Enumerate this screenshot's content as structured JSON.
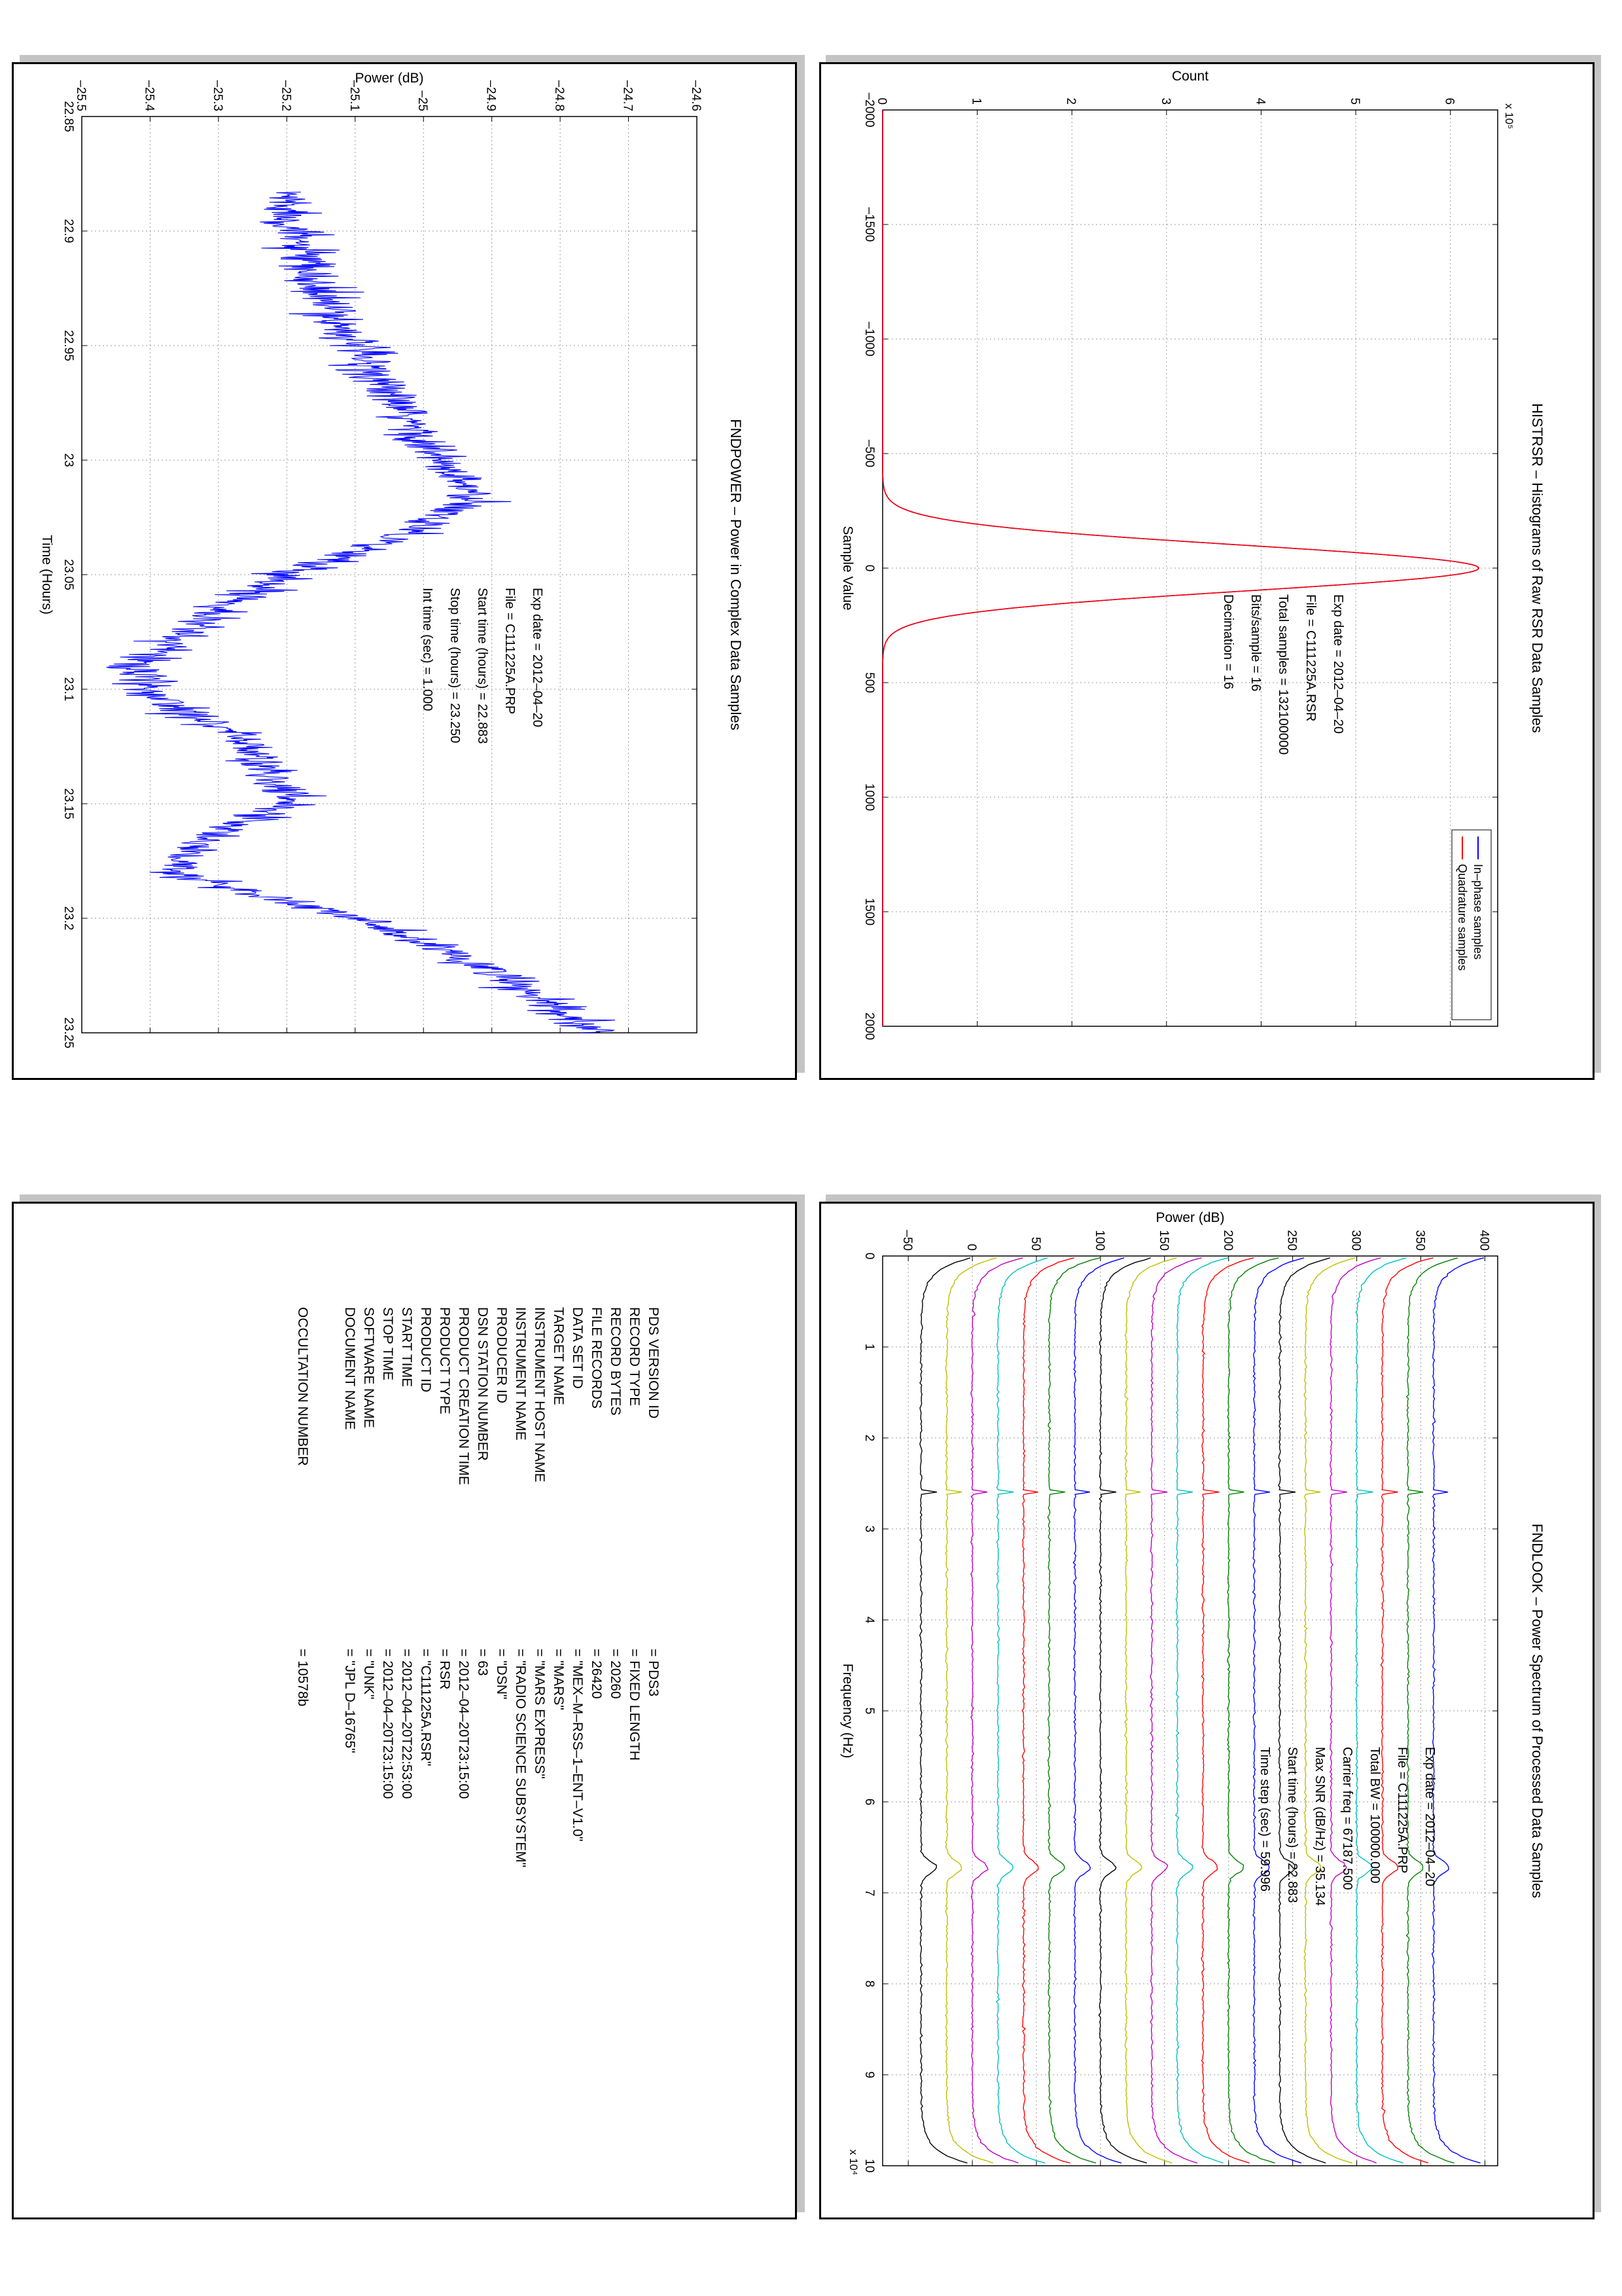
{
  "colors": {
    "inphase": "#0000ff",
    "quadrature": "#ff0000",
    "power_trace": "#0000ff",
    "spectrum_traces": [
      "#0000ff",
      "#008000",
      "#ff0000",
      "#00bfbf",
      "#bf00bf",
      "#bfbf00",
      "#000000",
      "#0000ff",
      "#008000",
      "#ff0000",
      "#00bfbf",
      "#bf00bf",
      "#bfbf00",
      "#000000",
      "#0000ff",
      "#008000",
      "#ff0000",
      "#00bfbf",
      "#bf00bf",
      "#bfbf00",
      "#000000"
    ]
  },
  "histogram": {
    "title": "HISTRSR – Histograms of Raw RSR Data Samples",
    "xlabel": "Sample Value",
    "ylabel": "Count",
    "exponent": "x 10⁵",
    "legend": [
      "In–phase samples",
      "Quadrature samples"
    ],
    "info": [
      "Exp date = 2012–04–20",
      "File = C111225A.RSR",
      "Total samples =  132100000",
      "Bits/sample   =       16",
      "Decimation    =       16"
    ]
  },
  "power": {
    "title": "FNDPOWER – Power in Complex Data Samples",
    "xlabel": "Time (Hours)",
    "ylabel": "Power (dB)",
    "info": [
      "Exp date = 2012–04–20",
      "File = C111225A.PRP",
      "Start time (hours) = 22.883",
      "Stop time (hours) =  23.250",
      "Int time (sec) =      1.000"
    ]
  },
  "spectrum": {
    "title": "FNDLOOK – Power Spectrum of Processed Data Samples",
    "xlabel": "Frequency (Hz)",
    "ylabel": "Power (dB)",
    "exponent": "x 10⁴",
    "info": [
      "Exp date = 2012–04–20",
      "File = C111225A.PRP",
      "Total BW =     100000.000",
      "Carrier freq =  67187.500",
      "Max SNR (dB/Hz) =    35.134",
      "Start time (hours) =   22.883",
      "Time step (sec) =     59.996"
    ]
  },
  "label": {
    "rows": [
      {
        "key": "PDS VERSION ID",
        "value": "= PDS3"
      },
      {
        "key": "RECORD TYPE",
        "value": "= FIXED LENGTH"
      },
      {
        "key": "RECORD BYTES",
        "value": "= 20260"
      },
      {
        "key": "FILE RECORDS",
        "value": "= 26420"
      },
      {
        "key": "DATA SET ID",
        "value": "= \"MEX–M–RSS–1–ENT–V1.0\""
      },
      {
        "key": "TARGET NAME",
        "value": "= \"MARS\""
      },
      {
        "key": "INSTRUMENT HOST NAME",
        "value": "= \"MARS EXPRESS\""
      },
      {
        "key": "INSTRUMENT NAME",
        "value": "= \"RADIO SCIENCE SUBSYSTEM\""
      },
      {
        "key": "PRODUCER ID",
        "value": "= \"DSN\""
      },
      {
        "key": "DSN STATION NUMBER",
        "value": "= 63"
      },
      {
        "key": "PRODUCT CREATION TIME",
        "value": "= 2012–04–20T23:15:00"
      },
      {
        "key": "PRODUCT TYPE",
        "value": "= RSR"
      },
      {
        "key": "PRODUCT ID",
        "value": "= \"C111225A.RSR\""
      },
      {
        "key": "START TIME",
        "value": "= 2012–04–20T22:53:00"
      },
      {
        "key": "STOP TIME",
        "value": "= 2012–04–20T23:15:00"
      },
      {
        "key": "SOFTWARE NAME",
        "value": "= \"UNK\""
      },
      {
        "key": "DOCUMENT NAME",
        "value": "= \"JPL D–16765\""
      }
    ],
    "occultation": {
      "key": "OCCULTATION NUMBER",
      "value": "= 10578b"
    }
  },
  "chart_data": [
    {
      "type": "line",
      "title": "HISTRSR – Histograms of Raw RSR Data Samples",
      "xlabel": "Sample Value",
      "ylabel": "Count",
      "xlim": [
        -2000,
        2000
      ],
      "ylim": [
        0,
        650000
      ],
      "xticks": [
        -2000,
        -1500,
        -1000,
        -500,
        0,
        500,
        1000,
        1500,
        2000
      ],
      "yticks": [
        0,
        100000,
        200000,
        300000,
        400000,
        500000,
        600000
      ],
      "ytick_labels": [
        "0",
        "1",
        "2",
        "3",
        "4",
        "5",
        "6"
      ],
      "grid": true,
      "legend_position": "top-right",
      "series": [
        {
          "name": "In–phase samples",
          "shape": "gaussian",
          "peak": 630000,
          "center": 0,
          "sigma": 100
        },
        {
          "name": "Quadrature samples",
          "shape": "gaussian",
          "peak": 630000,
          "center": 0,
          "sigma": 100
        }
      ]
    },
    {
      "type": "line",
      "title": "FNDPOWER – Power in Complex Data Samples",
      "xlabel": "Time (Hours)",
      "ylabel": "Power (dB)",
      "xlim": [
        22.85,
        23.25
      ],
      "ylim": [
        -25.5,
        -24.6
      ],
      "xticks": [
        22.85,
        22.9,
        22.95,
        23,
        23.05,
        23.1,
        23.15,
        23.2,
        23.25
      ],
      "yticks": [
        -25.5,
        -25.4,
        -25.3,
        -25.2,
        -25.1,
        -25,
        -24.9,
        -24.8,
        -24.7,
        -24.6
      ],
      "grid": true,
      "series": [
        {
          "x": [
            22.883,
            22.9,
            22.92,
            22.95,
            22.98,
            23.0,
            23.015,
            23.03,
            23.05,
            23.07,
            23.09,
            23.1,
            23.12,
            23.14,
            23.15,
            23.165,
            23.18,
            23.2,
            23.22,
            23.25
          ],
          "y": [
            -25.2,
            -25.19,
            -25.17,
            -25.1,
            -25.03,
            -24.98,
            -24.93,
            -25.0,
            -25.2,
            -25.32,
            -25.42,
            -25.41,
            -25.27,
            -25.22,
            -25.19,
            -25.32,
            -25.37,
            -25.1,
            -24.92,
            -24.75
          ]
        }
      ]
    },
    {
      "type": "line",
      "title": "FNDLOOK – Power Spectrum of Processed Data Samples",
      "xlabel": "Frequency (Hz)",
      "ylabel": "Power (dB)",
      "xlim": [
        0,
        100000
      ],
      "ylim": [
        -70,
        410
      ],
      "xticks": [
        0,
        10000,
        20000,
        30000,
        40000,
        50000,
        60000,
        70000,
        80000,
        90000,
        100000
      ],
      "xtick_labels": [
        "0",
        "1",
        "2",
        "3",
        "4",
        "5",
        "6",
        "7",
        "8",
        "9",
        "10"
      ],
      "yticks": [
        -50,
        0,
        50,
        100,
        150,
        200,
        250,
        300,
        350,
        400
      ],
      "grid": true,
      "series_count": 21,
      "series_offsets": [
        360,
        340,
        320,
        300,
        280,
        260,
        240,
        220,
        200,
        180,
        160,
        140,
        120,
        100,
        80,
        60,
        40,
        20,
        0,
        -20,
        -40
      ],
      "features": {
        "spike_freq": 26000,
        "carrier_freq": 67187.5
      }
    }
  ]
}
